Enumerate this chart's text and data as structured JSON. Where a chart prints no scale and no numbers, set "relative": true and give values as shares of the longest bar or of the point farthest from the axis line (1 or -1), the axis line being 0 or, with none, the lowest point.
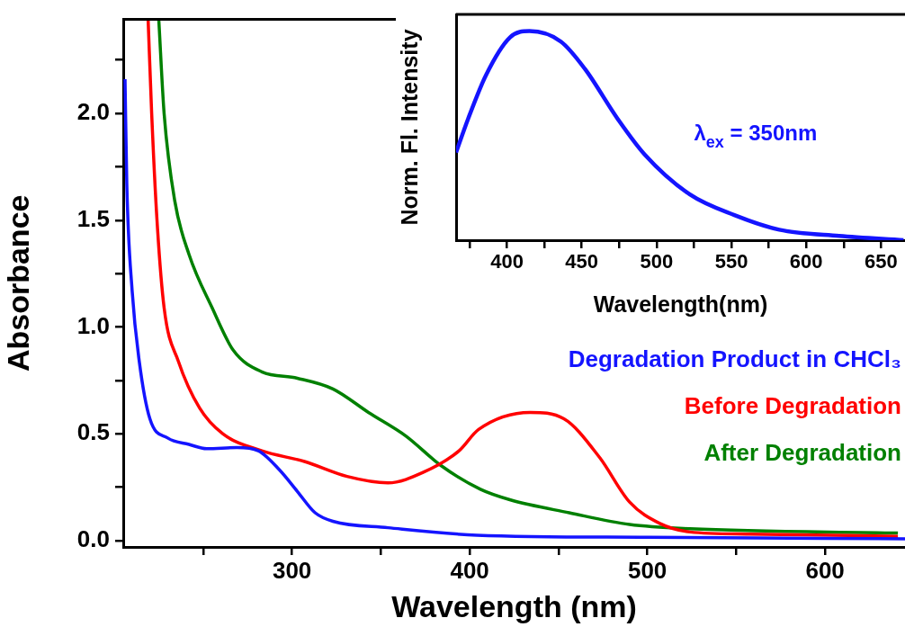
{
  "chart_data": [
    {
      "type": "line",
      "xlabel": "Wavelength (nm)",
      "ylabel": "Absorbance",
      "xlim": [
        205,
        645
      ],
      "ylim": [
        -0.03,
        2.44
      ],
      "xticks": [
        {
          "value": 250,
          "label": null
        },
        300,
        {
          "value": 350,
          "label": null
        },
        400,
        {
          "value": 450,
          "label": null
        },
        500,
        {
          "value": 550,
          "label": null
        },
        600
      ],
      "yticks": [
        {
          "value": 0,
          "label": "0.0"
        },
        {
          "value": 0.25,
          "label": null
        },
        0.5,
        {
          "value": 0.75,
          "label": null
        },
        {
          "value": 1,
          "label": "1.0"
        },
        {
          "value": 1.25,
          "label": null
        },
        1.5,
        {
          "value": 1.75,
          "label": null
        },
        {
          "value": 2,
          "label": "2.0"
        },
        {
          "value": 2.25,
          "label": null
        }
      ],
      "series": [
        {
          "name": "Degradation Product in CHCl₃",
          "color": "#1414ff",
          "x": [
            206,
            207,
            210,
            214,
            220,
            230,
            242,
            252,
            269,
            281,
            293,
            303,
            313,
            323,
            354,
            404,
            500,
            600,
            645
          ],
          "values": [
            2.16,
            1.67,
            1.17,
            0.84,
            0.57,
            0.48,
            0.45,
            0.43,
            0.435,
            0.42,
            0.33,
            0.23,
            0.13,
            0.09,
            0.06,
            0.025,
            0.015,
            0.01,
            0.008
          ]
        },
        {
          "name": "Before Degradation",
          "color": "#ff0000",
          "x": [
            219,
            221,
            224,
            228,
            236,
            248,
            261,
            283,
            307,
            331,
            354,
            374,
            394,
            405,
            434,
            453,
            473,
            490,
            507,
            524,
            557,
            641
          ],
          "values": [
            2.44,
            2.0,
            1.5,
            1.09,
            0.84,
            0.62,
            0.5,
            0.42,
            0.37,
            0.3,
            0.27,
            0.32,
            0.42,
            0.52,
            0.6,
            0.57,
            0.39,
            0.18,
            0.08,
            0.04,
            0.03,
            0.02
          ]
        },
        {
          "name": "After Degradation",
          "color": "#008000",
          "x": [
            225,
            228,
            234,
            242,
            255,
            267,
            283,
            303,
            323,
            343,
            364,
            384,
            406,
            423,
            456,
            490,
            524,
            641
          ],
          "values": [
            2.44,
            2.0,
            1.59,
            1.34,
            1.09,
            0.89,
            0.79,
            0.76,
            0.71,
            0.6,
            0.49,
            0.35,
            0.24,
            0.19,
            0.13,
            0.075,
            0.055,
            0.035
          ]
        }
      ]
    },
    {
      "type": "line",
      "xlabel": "Wavelength(nm)",
      "ylabel": "Norm. Fl. Intensity",
      "relative": true,
      "tick_labels": "x",
      "xlim": [
        366,
        666
      ],
      "xticks": [
        {
          "value": 375,
          "label": null
        },
        400,
        {
          "value": 425,
          "label": null
        },
        450,
        {
          "value": 475,
          "label": null
        },
        500,
        {
          "value": 525,
          "label": null
        },
        550,
        {
          "value": 575,
          "label": null
        },
        600,
        {
          "value": 625,
          "label": null
        },
        650
      ],
      "annotations": [
        "λ$_{ex}$ = 350nm"
      ],
      "series": [
        {
          "color": "#1414ff",
          "x": [
            366,
            374,
            386,
            402,
            415,
            436,
            452,
            474,
            492,
            522,
            552,
            582,
            622,
            665
          ],
          "values": [
            0.42,
            0.58,
            0.79,
            0.97,
            1.0,
            0.95,
            0.82,
            0.58,
            0.41,
            0.22,
            0.12,
            0.05,
            0.02,
            0.0
          ]
        }
      ]
    }
  ]
}
